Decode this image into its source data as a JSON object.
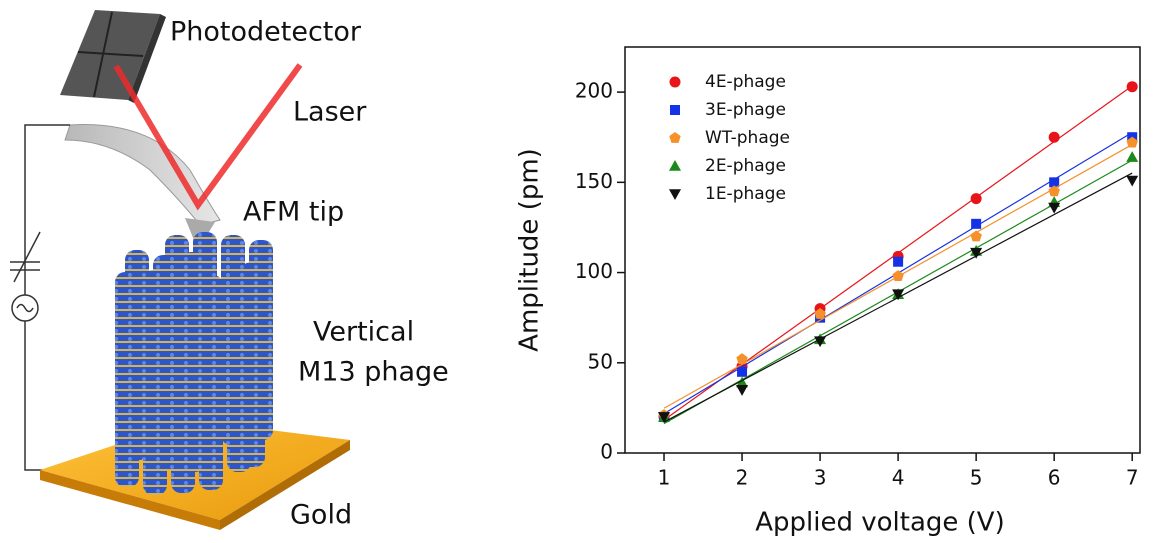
{
  "diagram": {
    "labels": [
      "Photodetector",
      "Laser",
      "AFM tip",
      "Vertical",
      "M13 phage",
      "Gold"
    ]
  },
  "chart_data": {
    "type": "scatter",
    "x_label": "Applied voltage (V)",
    "y_label": "Amplitude (pm)",
    "x": [
      1,
      2,
      3,
      4,
      5,
      6,
      7
    ],
    "xlim": [
      0.5,
      7.1
    ],
    "xticks": [
      1,
      2,
      3,
      4,
      5,
      6,
      7
    ],
    "ylim": [
      0,
      225
    ],
    "yticks": [
      0,
      50,
      100,
      150,
      200
    ],
    "fit_lines": true,
    "legend": "upper-left",
    "series": [
      {
        "name": "4E-phage",
        "color": "#e8141a",
        "marker": "circle",
        "values": [
          20,
          48,
          80,
          109,
          141,
          175,
          203
        ]
      },
      {
        "name": "3E-phage",
        "color": "#1432e6",
        "marker": "square",
        "values": [
          20,
          45,
          75,
          106,
          127,
          150,
          175
        ]
      },
      {
        "name": "WT-phage",
        "color": "#f5902a",
        "marker": "pentagon",
        "values": [
          21,
          52,
          77,
          98,
          120,
          145,
          172
        ]
      },
      {
        "name": "2E-phage",
        "color": "#1a8a1a",
        "marker": "triangle-up",
        "values": [
          20,
          39,
          63,
          88,
          112,
          139,
          164
        ]
      },
      {
        "name": "1E-phage",
        "color": "#111111",
        "marker": "triangle-down",
        "values": [
          20,
          35,
          62,
          88,
          111,
          136,
          151
        ]
      }
    ]
  }
}
